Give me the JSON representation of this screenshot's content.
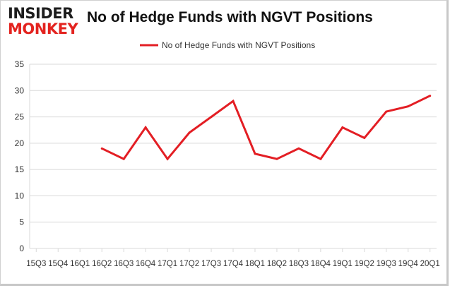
{
  "logo": {
    "line1": "INSIDER",
    "line2": "MONKEY"
  },
  "chart_data": {
    "type": "line",
    "title": "No of Hedge Funds with NGVT Positions",
    "xlabel": "",
    "ylabel": "",
    "legend_position": "top-center",
    "grid": true,
    "ylim": [
      0,
      35
    ],
    "yticks": [
      0,
      5,
      10,
      15,
      20,
      25,
      30,
      35
    ],
    "categories": [
      "15Q3",
      "15Q4",
      "16Q1",
      "16Q2",
      "16Q3",
      "16Q4",
      "17Q1",
      "17Q2",
      "17Q3",
      "17Q4",
      "18Q1",
      "18Q2",
      "18Q3",
      "18Q4",
      "19Q1",
      "19Q2",
      "19Q3",
      "19Q4",
      "20Q1"
    ],
    "series": [
      {
        "name": "No of Hedge Funds with NGVT Positions",
        "color": "#e31e24",
        "values": [
          null,
          null,
          null,
          19,
          17,
          23,
          17,
          22,
          25,
          28,
          18,
          17,
          19,
          17,
          23,
          21,
          26,
          27,
          29
        ]
      }
    ]
  }
}
